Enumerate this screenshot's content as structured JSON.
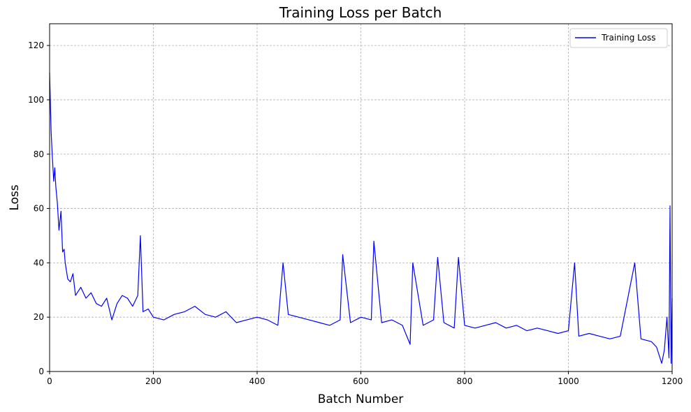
{
  "chart_data": {
    "type": "line",
    "title": "Training Loss per Batch",
    "xlabel": "Batch Number",
    "ylabel": "Loss",
    "xlim": [
      0,
      1200
    ],
    "ylim": [
      0,
      128
    ],
    "x_ticks": [
      0,
      200,
      400,
      600,
      800,
      1000,
      1200
    ],
    "y_ticks": [
      0,
      20,
      40,
      60,
      80,
      100,
      120
    ],
    "grid": true,
    "legend_position": "top-right",
    "series": [
      {
        "name": "Training Loss",
        "color": "#0000ff",
        "x": [
          0,
          3,
          5,
          8,
          10,
          12,
          15,
          18,
          22,
          25,
          28,
          30,
          35,
          40,
          45,
          50,
          60,
          70,
          80,
          90,
          100,
          110,
          120,
          130,
          140,
          150,
          160,
          170,
          175,
          180,
          190,
          200,
          220,
          240,
          260,
          280,
          300,
          320,
          340,
          360,
          380,
          400,
          420,
          440,
          450,
          460,
          480,
          500,
          520,
          540,
          560,
          565,
          580,
          600,
          620,
          625,
          640,
          660,
          680,
          695,
          700,
          720,
          740,
          748,
          760,
          780,
          788,
          800,
          820,
          840,
          860,
          880,
          900,
          920,
          940,
          960,
          980,
          1000,
          1012,
          1020,
          1040,
          1060,
          1080,
          1100,
          1128,
          1140,
          1160,
          1170,
          1180,
          1185,
          1190,
          1194,
          1196,
          1198,
          1200
        ],
        "y": [
          110,
          88,
          80,
          70,
          75,
          68,
          62,
          52,
          59,
          44,
          45,
          40,
          34,
          33,
          36,
          28,
          31,
          27,
          29,
          25,
          24,
          27,
          19,
          25,
          28,
          27,
          24,
          28,
          50,
          22,
          23,
          20,
          19,
          21,
          22,
          24,
          21,
          20,
          22,
          18,
          19,
          20,
          19,
          17,
          40,
          21,
          20,
          19,
          18,
          17,
          19,
          43,
          18,
          20,
          19,
          48,
          18,
          19,
          17,
          10,
          40,
          17,
          19,
          42,
          18,
          16,
          42,
          17,
          16,
          17,
          18,
          16,
          17,
          15,
          16,
          15,
          14,
          15,
          40,
          13,
          14,
          13,
          12,
          13,
          40,
          12,
          11,
          9,
          3,
          8,
          20,
          5,
          61,
          3,
          27
        ]
      }
    ]
  }
}
